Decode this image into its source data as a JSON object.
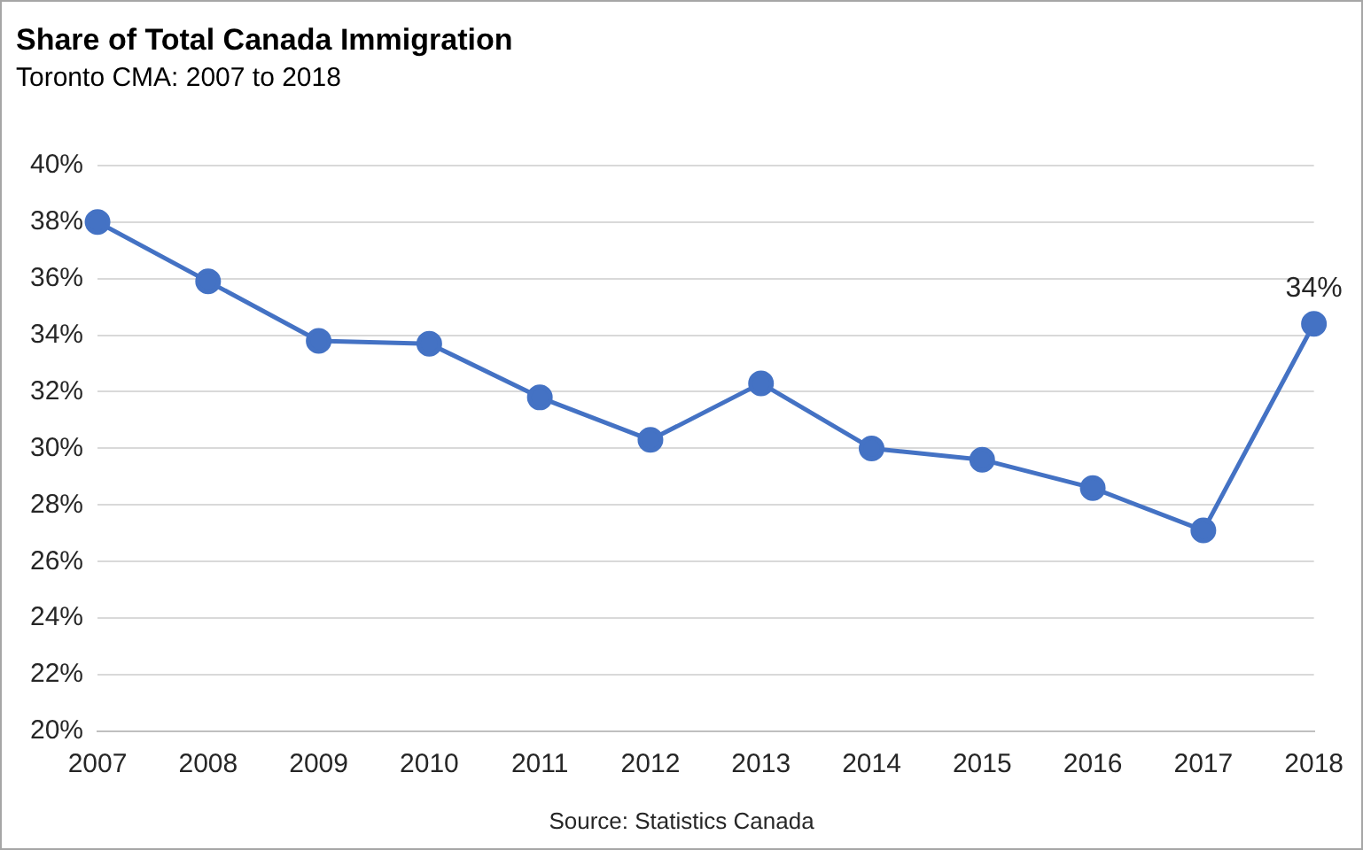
{
  "chart_data": {
    "type": "line",
    "title": "Share of Total Canada Immigration",
    "subtitle": "Toronto CMA: 2007 to 2018",
    "categories": [
      "2007",
      "2008",
      "2009",
      "2010",
      "2011",
      "2012",
      "2013",
      "2014",
      "2015",
      "2016",
      "2017",
      "2018"
    ],
    "series": [
      {
        "color": "#4472c4",
        "values": [
          38.0,
          35.9,
          33.8,
          33.7,
          31.8,
          30.3,
          32.3,
          30.0,
          29.6,
          28.6,
          27.1,
          34.4
        ],
        "value_labels": [
          null,
          null,
          null,
          null,
          null,
          null,
          null,
          null,
          null,
          null,
          null,
          "34%"
        ]
      }
    ],
    "ylim": [
      20,
      40
    ],
    "yticks": [
      {
        "value": 20,
        "label": "20%"
      },
      {
        "value": 22,
        "label": "22%"
      },
      {
        "value": 24,
        "label": "24%"
      },
      {
        "value": 26,
        "label": "26%"
      },
      {
        "value": 28,
        "label": "28%"
      },
      {
        "value": 30,
        "label": "30%"
      },
      {
        "value": 32,
        "label": "32%"
      },
      {
        "value": 34,
        "label": "34%"
      },
      {
        "value": 36,
        "label": "36%"
      },
      {
        "value": 38,
        "label": "38%"
      },
      {
        "value": 40,
        "label": "40%"
      }
    ],
    "grid": "y",
    "legend": false,
    "marker": "circle",
    "line_style": "solid",
    "annotations": [
      "Source: Statistics Canada"
    ]
  }
}
